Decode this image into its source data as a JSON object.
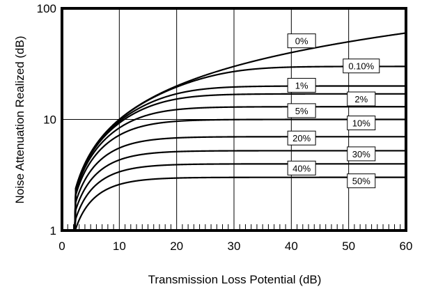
{
  "chart_data": {
    "type": "line",
    "title": "",
    "xlabel": "Transmission Loss Potential (dB)",
    "ylabel": "Noise Attenuation Realized (dB)",
    "xlim": [
      0,
      60
    ],
    "ylim": [
      1,
      100
    ],
    "yscale": "log",
    "grid": true,
    "x_ticks": [
      0,
      10,
      20,
      30,
      40,
      50,
      60
    ],
    "x_tick_labels": [
      "0",
      "10",
      "20",
      "30",
      "40",
      "50",
      "60"
    ],
    "x_minor_step": 1,
    "y_ticks": [
      1,
      10,
      100
    ],
    "y_tick_labels": [
      "1",
      "10",
      "100"
    ],
    "series": [
      {
        "name": "0%",
        "leak_fraction": 0
      },
      {
        "name": "0.10%",
        "leak_fraction": 0.001
      },
      {
        "name": "1%",
        "leak_fraction": 0.01
      },
      {
        "name": "2%",
        "leak_fraction": 0.02
      },
      {
        "name": "5%",
        "leak_fraction": 0.05
      },
      {
        "name": "10%",
        "leak_fraction": 0.1
      },
      {
        "name": "20%",
        "leak_fraction": 0.2
      },
      {
        "name": "30%",
        "leak_fraction": 0.3
      },
      {
        "name": "40%",
        "leak_fraction": 0.4
      },
      {
        "name": "50%",
        "leak_fraction": 0.5
      }
    ],
    "annotations": [
      {
        "text": "0%",
        "x": 41.8,
        "y": 51
      },
      {
        "text": "0.10%",
        "x": 52.2,
        "y": 30.3
      },
      {
        "text": "1%",
        "x": 41.8,
        "y": 20.3
      },
      {
        "text": "2%",
        "x": 52.2,
        "y": 15.3
      },
      {
        "text": "5%",
        "x": 41.8,
        "y": 12
      },
      {
        "text": "10%",
        "x": 52.2,
        "y": 9.3
      },
      {
        "text": "20%",
        "x": 41.8,
        "y": 6.8
      },
      {
        "text": "30%",
        "x": 52.2,
        "y": 4.9
      },
      {
        "text": "40%",
        "x": 41.8,
        "y": 3.65
      },
      {
        "text": "50%",
        "x": 52.2,
        "y": 2.8
      }
    ]
  }
}
